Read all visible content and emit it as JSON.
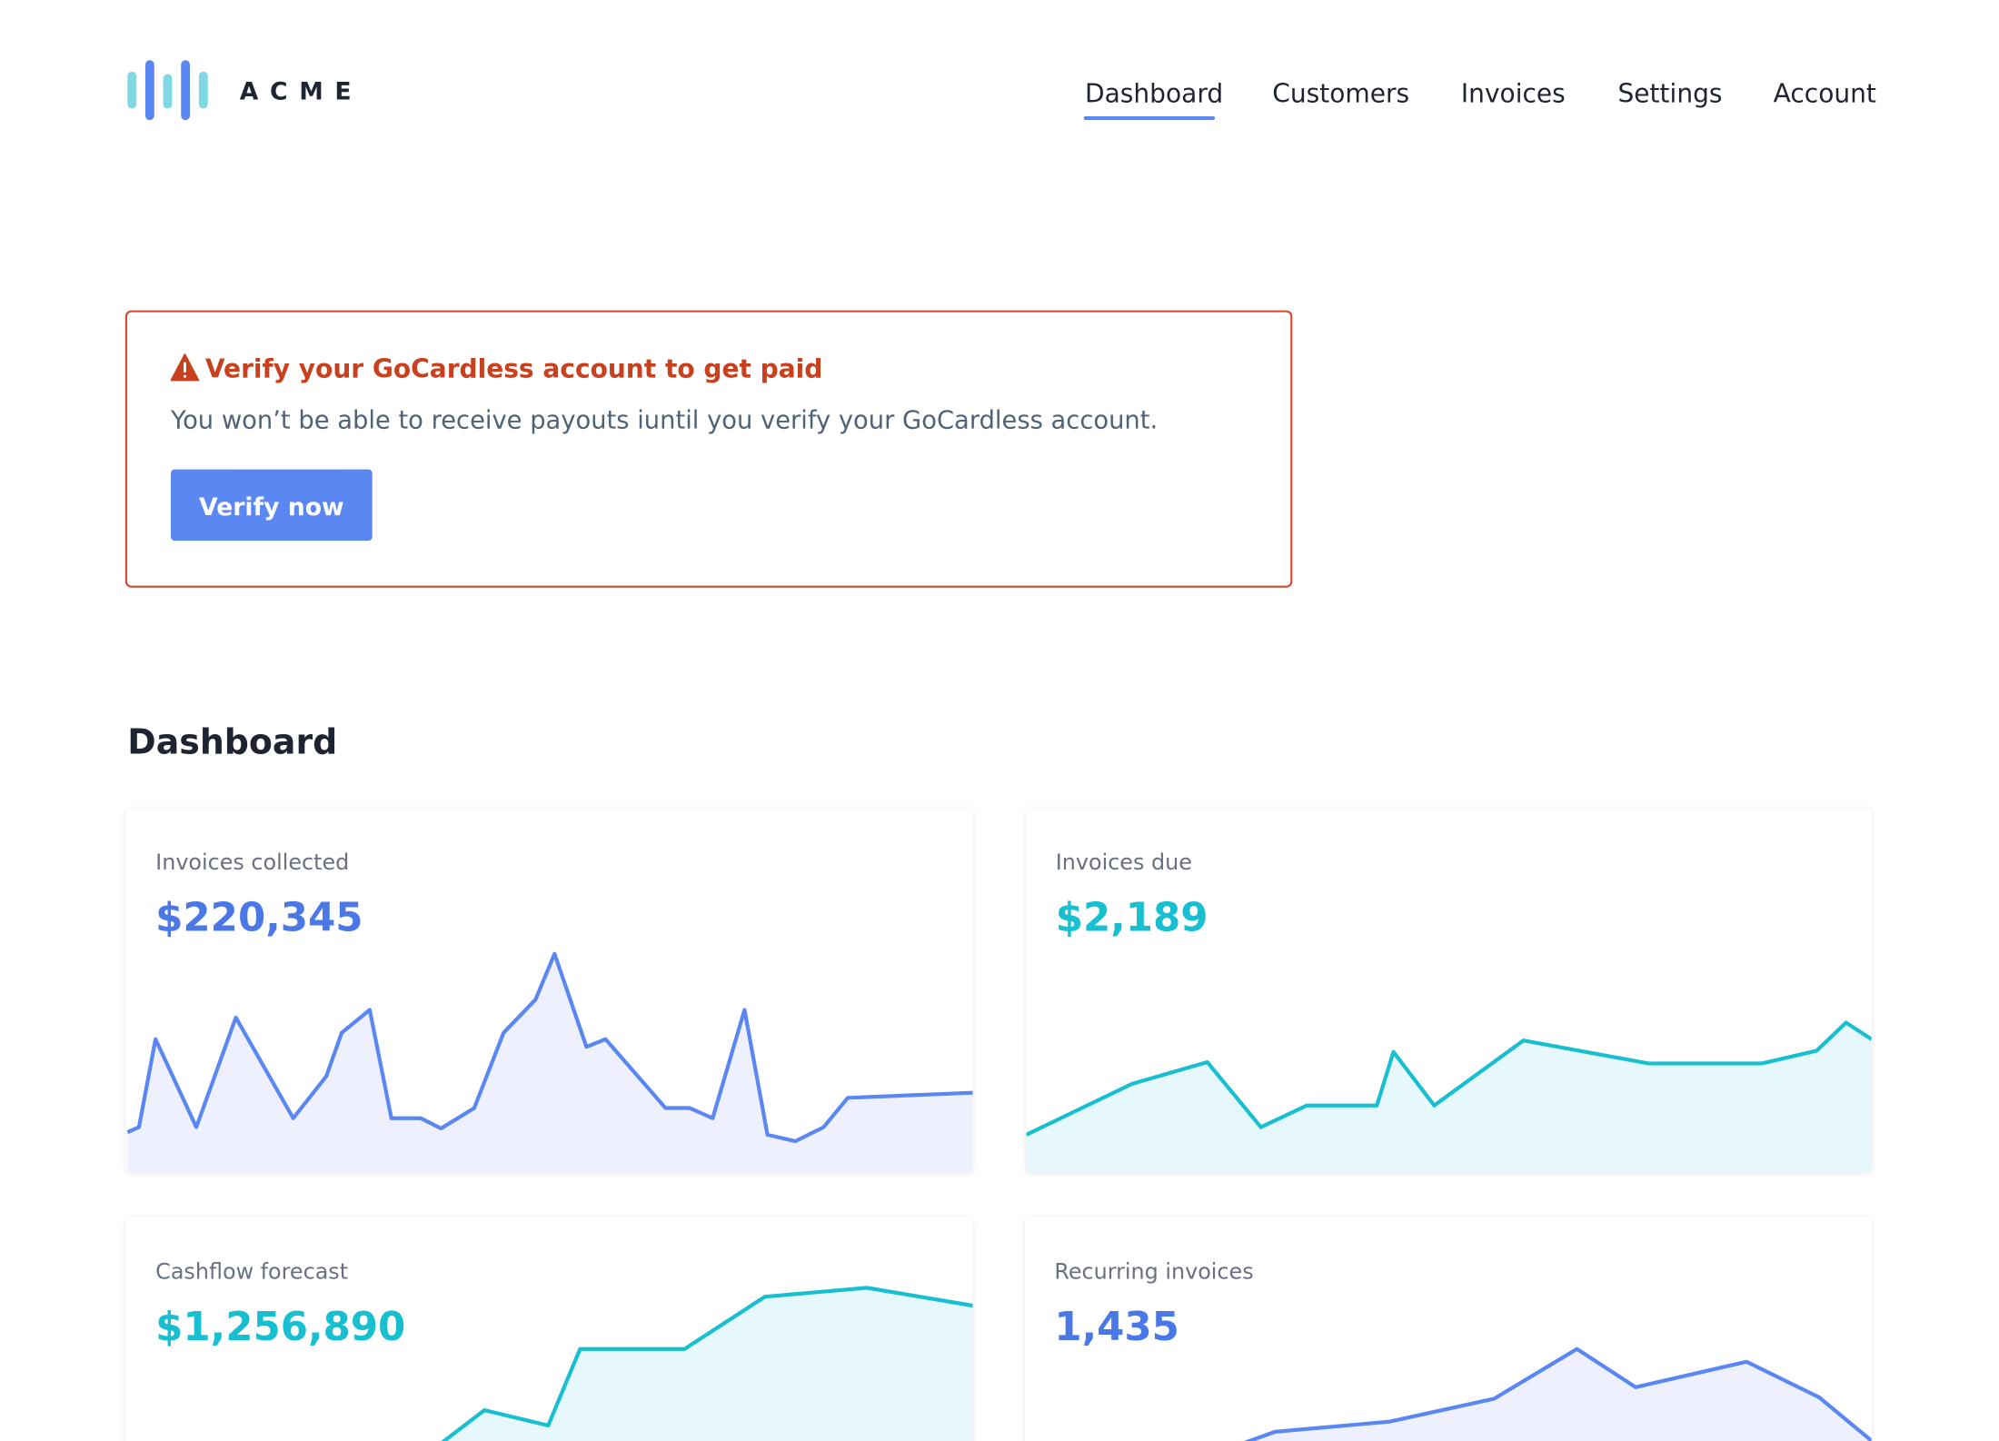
{
  "header": {
    "logo": "ACME",
    "nav": [
      "Dashboard",
      "Customers",
      "Invoices",
      "Settings",
      "Account"
    ]
  },
  "alert": {
    "title": "Verify your GoCardless account to get paid",
    "body": "You won’t be able to receive payouts iuntil you verify your GoCardless account.",
    "button": "Verify now"
  },
  "dashboard": {
    "title": "Dashboard",
    "cards": [
      {
        "label": "Invoices collected",
        "value": "$220,345"
      },
      {
        "label": "Invoices due",
        "value": "$2,189"
      },
      {
        "label": "Cashflow forecast",
        "value": "$1,256,890"
      },
      {
        "label": "Recurring invoices",
        "value": "1,435"
      }
    ]
  }
}
